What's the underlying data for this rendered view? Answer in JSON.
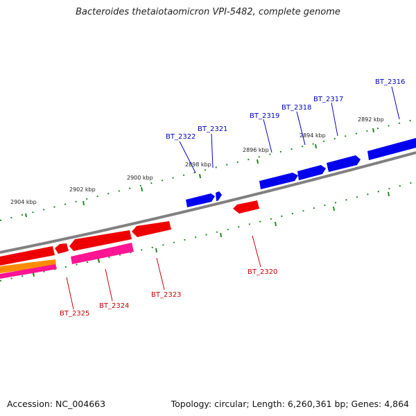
{
  "title": "Bacteroides thetaiotaomicron VPI-5482, complete genome",
  "accession": "Accession: NC_004663",
  "summary": "Topology: circular; Length: 6,260,361 bp; Genes: 4,864",
  "colors": {
    "forward": "#0000ee",
    "reverse": "#ee0000",
    "orange": "#ff8c00",
    "magenta": "#ff1493",
    "backbone": "#888888",
    "ticks": "#228822",
    "forward_label": "#0000cc",
    "reverse_label": "#cc0000"
  },
  "kbp_labels": [
    "2892 kbp",
    "2894 kbp",
    "2896 kbp",
    "2898 kbp",
    "2900 kbp",
    "2902 kbp",
    "2904 kbp"
  ],
  "forward_genes": [
    "BT_2316",
    "BT_2317",
    "BT_2318",
    "BT_2319",
    "BT_2321",
    "BT_2322"
  ],
  "reverse_genes": [
    "BT_2320",
    "BT_2323",
    "BT_2324",
    "BT_2325"
  ]
}
